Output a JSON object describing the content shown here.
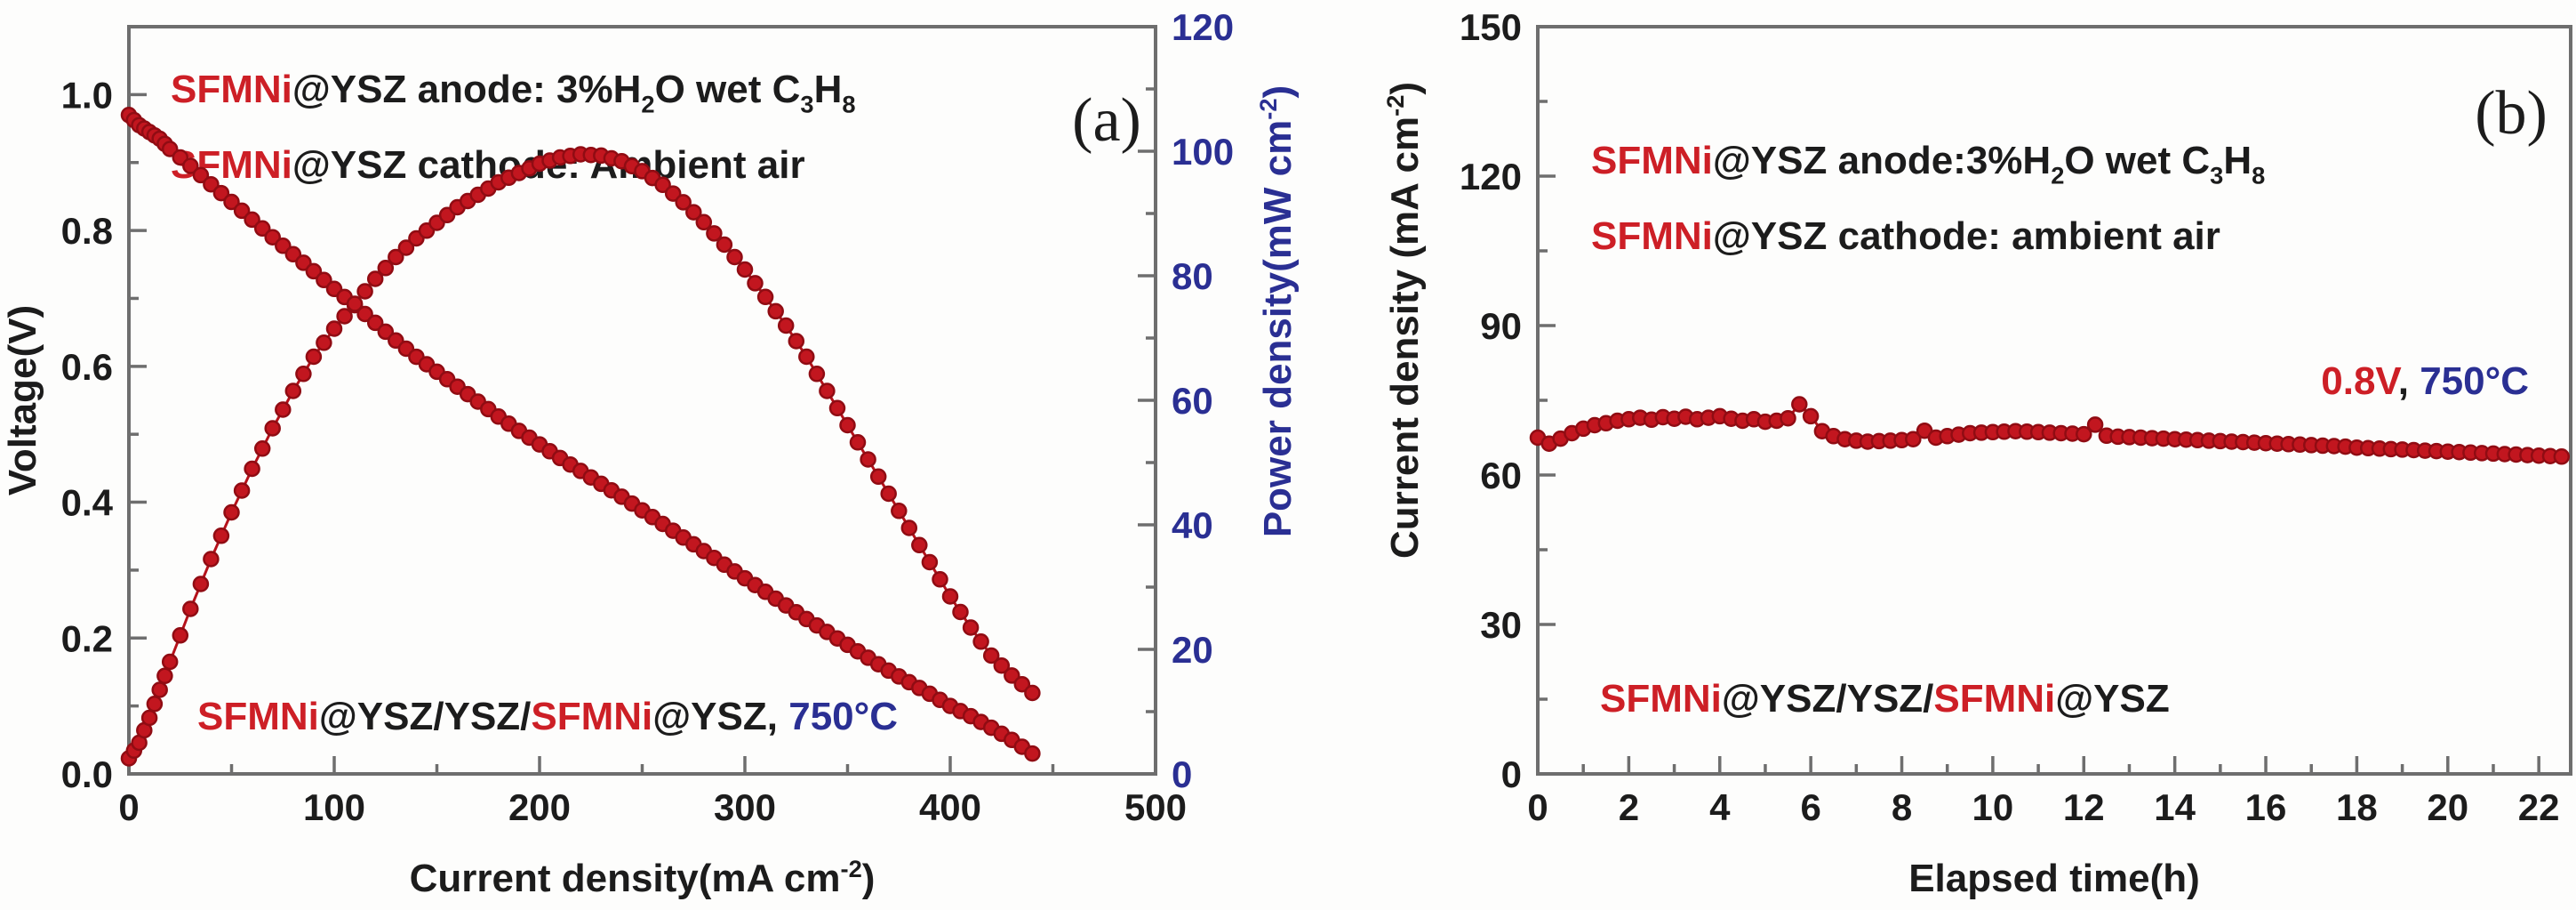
{
  "colors": {
    "red_text": "#cd1f26",
    "blue_text": "#2a2f93",
    "black_text": "#1c1c1c",
    "axis": "#6e6e6e",
    "point_fill": "#c2161f",
    "point_stroke": "#900c13",
    "line": "#b5121b",
    "background": "#fdfdfc"
  },
  "chart_data": [
    {
      "id": "a",
      "type": "line",
      "panel_label": "(a)",
      "xlabel_parts": [
        {
          "t": "Current density(mA cm",
          "s": "n"
        },
        {
          "t": "-2",
          "s": "sup"
        },
        {
          "t": ")",
          "s": "n"
        }
      ],
      "ylabel_left": "Voltage(V)",
      "ylabel_right_parts": [
        {
          "t": "Power density(mW cm",
          "s": "n"
        },
        {
          "t": "-2",
          "s": "sup"
        },
        {
          "t": ")",
          "s": "n"
        }
      ],
      "xlim": [
        0,
        500
      ],
      "ylim_left": [
        0,
        1.1
      ],
      "ylim_right": [
        0,
        120
      ],
      "xticks": {
        "major": [
          0,
          100,
          200,
          300,
          400,
          500
        ],
        "minor": [
          50,
          150,
          250,
          350,
          450
        ],
        "labels": [
          "0",
          "100",
          "200",
          "300",
          "400",
          "500"
        ]
      },
      "yticks_left": {
        "major": [
          0,
          0.2,
          0.4,
          0.6,
          0.8,
          1.0
        ],
        "minor": [
          0.1,
          0.3,
          0.5,
          0.7,
          0.9
        ],
        "labels": [
          "0.0",
          "0.2",
          "0.4",
          "0.6",
          "0.8",
          "1.0"
        ]
      },
      "yticks_right": {
        "major": [
          0,
          20,
          40,
          60,
          80,
          100,
          120
        ],
        "minor": [
          10,
          30,
          50,
          70,
          90,
          110
        ],
        "labels": [
          "0",
          "20",
          "40",
          "60",
          "80",
          "100",
          "120"
        ]
      },
      "annotations": [
        {
          "slot": "top1",
          "segments": [
            {
              "t": "SFMNi",
              "c": "red",
              "s": "n"
            },
            {
              "t": "@YSZ anode: 3%H",
              "c": "black",
              "s": "n"
            },
            {
              "t": "2",
              "c": "black",
              "s": "sub"
            },
            {
              "t": "O wet C",
              "c": "black",
              "s": "n"
            },
            {
              "t": "3",
              "c": "black",
              "s": "sub"
            },
            {
              "t": "H",
              "c": "black",
              "s": "n"
            },
            {
              "t": "8",
              "c": "black",
              "s": "sub"
            }
          ]
        },
        {
          "slot": "top2",
          "segments": [
            {
              "t": "SFMNi",
              "c": "red",
              "s": "n"
            },
            {
              "t": "@YSZ cathode: Ambient air",
              "c": "black",
              "s": "n"
            }
          ]
        },
        {
          "slot": "bottom",
          "segments": [
            {
              "t": "SFMNi",
              "c": "red",
              "s": "n"
            },
            {
              "t": "@YSZ/YSZ/",
              "c": "black",
              "s": "n"
            },
            {
              "t": "SFMNi",
              "c": "red",
              "s": "n"
            },
            {
              "t": "@YSZ, ",
              "c": "black",
              "s": "n"
            },
            {
              "t": "750°C",
              "c": "blue",
              "s": "n"
            }
          ]
        }
      ],
      "series": [
        {
          "name": "voltage",
          "axis": "left",
          "x": [
            0,
            5,
            10,
            15,
            20,
            30,
            40,
            50,
            60,
            70,
            80,
            90,
            100,
            110,
            120,
            130,
            140,
            150,
            160,
            170,
            180,
            190,
            200,
            210,
            220,
            230,
            240,
            250,
            260,
            270,
            280,
            290,
            300,
            310,
            320,
            330,
            340,
            350,
            360,
            370,
            380,
            390,
            400,
            410,
            420,
            430,
            440
          ],
          "y": [
            0.97,
            0.955,
            0.945,
            0.935,
            0.92,
            0.895,
            0.868,
            0.842,
            0.816,
            0.79,
            0.765,
            0.74,
            0.714,
            0.69,
            0.664,
            0.638,
            0.614,
            0.592,
            0.57,
            0.548,
            0.526,
            0.505,
            0.485,
            0.465,
            0.446,
            0.427,
            0.408,
            0.388,
            0.368,
            0.348,
            0.328,
            0.308,
            0.288,
            0.268,
            0.248,
            0.228,
            0.209,
            0.19,
            0.171,
            0.152,
            0.135,
            0.118,
            0.1,
            0.085,
            0.068,
            0.05,
            0.03
          ]
        },
        {
          "name": "power_density",
          "axis": "right",
          "x": [
            0,
            5,
            10,
            15,
            20,
            30,
            40,
            50,
            60,
            70,
            80,
            90,
            100,
            110,
            120,
            130,
            140,
            150,
            160,
            170,
            180,
            190,
            200,
            210,
            220,
            230,
            240,
            250,
            260,
            270,
            280,
            290,
            300,
            310,
            320,
            330,
            340,
            350,
            360,
            370,
            380,
            390,
            400,
            410,
            420,
            430,
            440
          ],
          "y": [
            2.5,
            5,
            9,
            13.5,
            18,
            26.5,
            34.5,
            42,
            49,
            55.5,
            61.5,
            67,
            71.5,
            75.5,
            79.5,
            83,
            86,
            88.5,
            91,
            93,
            95,
            96.5,
            98,
            99,
            99.5,
            99.3,
            98.4,
            96.8,
            94.6,
            91.8,
            88.6,
            85,
            81,
            76.6,
            72,
            67,
            61.5,
            56,
            50.5,
            45,
            39.5,
            34,
            28.5,
            23.5,
            19,
            15.8,
            13
          ]
        }
      ]
    },
    {
      "id": "b",
      "type": "line",
      "panel_label": "(b)",
      "xlabel_parts": [
        {
          "t": "Elapsed time(h)",
          "s": "n"
        }
      ],
      "ylabel_left_parts": [
        {
          "t": "Current density (mA cm",
          "s": "n"
        },
        {
          "t": "-2",
          "s": "sup"
        },
        {
          "t": ")",
          "s": "n"
        }
      ],
      "xlim": [
        0,
        22.7
      ],
      "ylim_left": [
        0,
        150
      ],
      "xticks": {
        "major": [
          0,
          2,
          4,
          6,
          8,
          10,
          12,
          14,
          16,
          18,
          20,
          22
        ],
        "minor": [
          1,
          3,
          5,
          7,
          9,
          11,
          13,
          15,
          17,
          19,
          21
        ],
        "labels": [
          "0",
          "2",
          "4",
          "6",
          "8",
          "10",
          "12",
          "14",
          "16",
          "18",
          "20",
          "22"
        ]
      },
      "yticks_left": {
        "major": [
          0,
          30,
          60,
          90,
          120,
          150
        ],
        "minor": [
          15,
          45,
          75,
          105,
          135
        ],
        "labels": [
          "0",
          "30",
          "60",
          "90",
          "120",
          "150"
        ]
      },
      "annotations": [
        {
          "slot": "top1",
          "segments": [
            {
              "t": "SFMNi",
              "c": "red",
              "s": "n"
            },
            {
              "t": "@YSZ anode:3%H",
              "c": "black",
              "s": "n"
            },
            {
              "t": "2",
              "c": "black",
              "s": "sub"
            },
            {
              "t": "O wet C",
              "c": "black",
              "s": "n"
            },
            {
              "t": "3",
              "c": "black",
              "s": "sub"
            },
            {
              "t": "H",
              "c": "black",
              "s": "n"
            },
            {
              "t": "8",
              "c": "black",
              "s": "sub"
            }
          ]
        },
        {
          "slot": "top2",
          "segments": [
            {
              "t": "SFMNi",
              "c": "red",
              "s": "n"
            },
            {
              "t": "@YSZ cathode: ambient air",
              "c": "black",
              "s": "n"
            }
          ]
        },
        {
          "slot": "mid_right",
          "segments": [
            {
              "t": "0.8V",
              "c": "red",
              "s": "n"
            },
            {
              "t": ", ",
              "c": "black",
              "s": "n"
            },
            {
              "t": "750°C",
              "c": "blue",
              "s": "n"
            }
          ]
        },
        {
          "slot": "bottom",
          "segments": [
            {
              "t": "SFMNi",
              "c": "red",
              "s": "n"
            },
            {
              "t": "@YSZ/YSZ/",
              "c": "black",
              "s": "n"
            },
            {
              "t": "SFMNi",
              "c": "red",
              "s": "n"
            },
            {
              "t": "@YSZ",
              "c": "black",
              "s": "n"
            }
          ]
        }
      ],
      "series": [
        {
          "name": "current_density",
          "axis": "left",
          "x": [
            0,
            0.25,
            0.5,
            0.75,
            1,
            1.25,
            1.5,
            1.75,
            2,
            2.25,
            2.5,
            2.75,
            3,
            3.25,
            3.5,
            3.75,
            4,
            4.25,
            4.5,
            4.75,
            5,
            5.25,
            5.5,
            5.75,
            6,
            6.25,
            6.5,
            6.75,
            7,
            7.25,
            7.5,
            7.75,
            8,
            8.25,
            8.5,
            8.75,
            9,
            9.25,
            9.5,
            9.75,
            10,
            10.25,
            10.5,
            10.75,
            11,
            11.25,
            11.5,
            11.75,
            12,
            12.25,
            12.5,
            12.75,
            13,
            13.25,
            13.5,
            13.75,
            14,
            14.25,
            14.5,
            14.75,
            15,
            15.25,
            15.5,
            15.75,
            16,
            16.25,
            16.5,
            16.75,
            17,
            17.25,
            17.5,
            17.75,
            18,
            18.25,
            18.5,
            18.75,
            19,
            19.25,
            19.5,
            19.75,
            20,
            20.25,
            20.5,
            20.75,
            21,
            21.25,
            21.5,
            21.75,
            22,
            22.25,
            22.5
          ],
          "y": [
            67.5,
            66.3,
            67.3,
            68.4,
            69.3,
            70.0,
            70.4,
            70.9,
            71.2,
            71.5,
            71.1,
            71.6,
            71.3,
            71.7,
            71.2,
            71.5,
            71.8,
            71.3,
            70.9,
            71.2,
            70.7,
            70.9,
            71.4,
            74.2,
            71.8,
            68.8,
            67.8,
            67.2,
            66.9,
            66.7,
            66.8,
            66.9,
            67.0,
            67.2,
            68.9,
            67.5,
            67.8,
            68.1,
            68.4,
            68.5,
            68.6,
            68.7,
            68.8,
            68.7,
            68.6,
            68.5,
            68.4,
            68.3,
            68.2,
            70.1,
            67.9,
            67.7,
            67.6,
            67.5,
            67.4,
            67.3,
            67.2,
            67.1,
            67.0,
            66.9,
            66.8,
            66.7,
            66.6,
            66.5,
            66.4,
            66.3,
            66.2,
            66.1,
            66.0,
            65.9,
            65.8,
            65.7,
            65.5,
            65.4,
            65.3,
            65.2,
            65.1,
            65.0,
            64.9,
            64.8,
            64.7,
            64.6,
            64.5,
            64.4,
            64.3,
            64.2,
            64.1,
            64.0,
            63.9,
            63.8,
            63.7
          ]
        }
      ]
    }
  ]
}
